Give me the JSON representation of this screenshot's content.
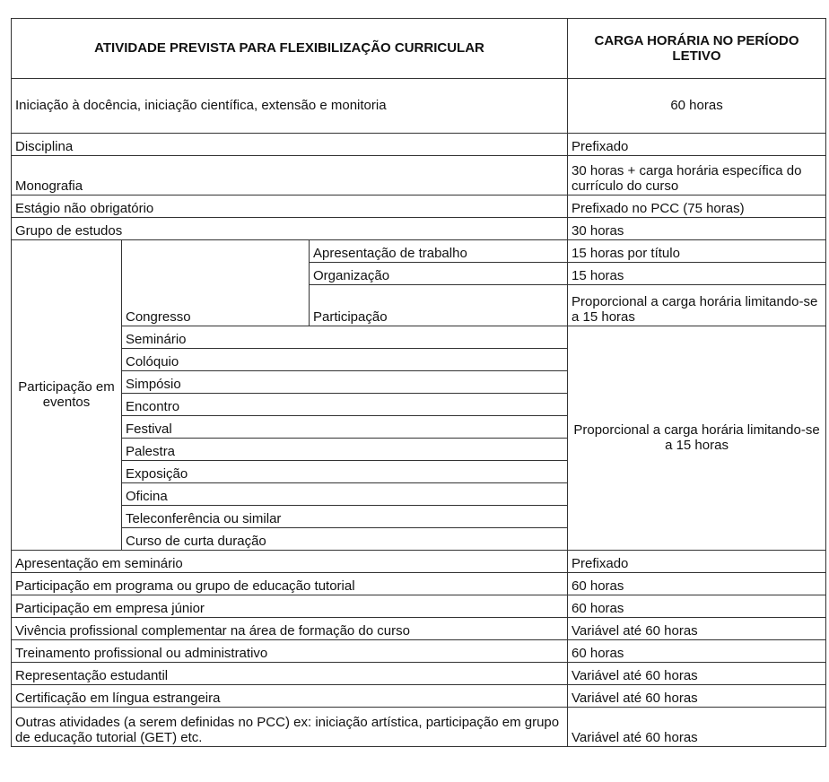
{
  "header": {
    "activity": "ATIVIDADE PREVISTA PARA FLEXIBILIZAÇÃO CURRICULAR",
    "hours": "CARGA HORÁRIA NO PERÍODO LETIVO"
  },
  "top_rows": [
    {
      "activity": "Iniciação à docência, iniciação científica, extensão e monitoria",
      "hours": "60 horas"
    },
    {
      "activity": "Disciplina",
      "hours": "Prefixado"
    },
    {
      "activity": "Monografia",
      "hours": "30 horas + carga horária específica do currículo do curso"
    },
    {
      "activity": "Estágio não obrigatório",
      "hours": "Prefixado no PCC (75 horas)"
    },
    {
      "activity": "Grupo de estudos",
      "hours": "30 horas"
    }
  ],
  "events": {
    "label": "Participação em eventos",
    "congress": {
      "label": "Congresso",
      "items": [
        {
          "activity": "Apresentação de trabalho",
          "hours": "15 horas por título"
        },
        {
          "activity": "Organização",
          "hours": "15 horas"
        },
        {
          "activity": "Participação",
          "hours": "Proporcional a carga horária limitando-se a 15 horas"
        }
      ]
    },
    "others": [
      "Seminário",
      "Colóquio",
      "Simpósio",
      "Encontro",
      "Festival",
      "Palestra",
      "Exposição",
      "Oficina",
      "Teleconferência ou similar",
      "Curso de curta duração"
    ],
    "others_hours": "Proporcional a carga horária limitando-se a 15 horas"
  },
  "bottom_rows": [
    {
      "activity": "Apresentação em seminário",
      "hours": "Prefixado"
    },
    {
      "activity": "Participação em programa ou grupo de educação tutorial",
      "hours": "60 horas"
    },
    {
      "activity": "Participação em empresa júnior",
      "hours": "60 horas"
    },
    {
      "activity": "Vivência profissional complementar na área de formação do curso",
      "hours": "Variável até 60 horas"
    },
    {
      "activity": "Treinamento profissional ou administrativo",
      "hours": "60 horas"
    },
    {
      "activity": "Representação estudantil",
      "hours": "Variável até 60 horas"
    },
    {
      "activity": "Certificação em língua estrangeira",
      "hours": "Variável até 60 horas"
    },
    {
      "activity": "Outras atividades (a serem definidas no PCC) ex: iniciação artística, participação em grupo de educação tutorial (GET) etc.",
      "hours": "Variável até 60 horas"
    }
  ]
}
